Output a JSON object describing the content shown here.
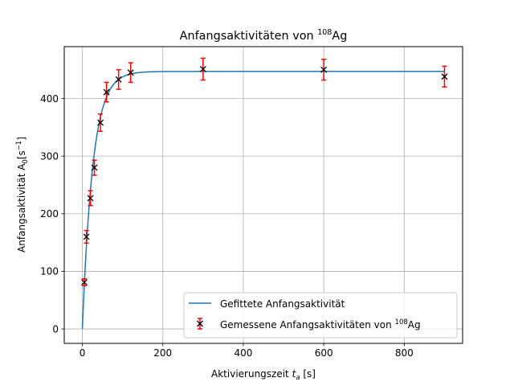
{
  "chart_data": {
    "type": "scatter",
    "title_main": "Anfangsaktivitäten von ",
    "title_sup": "108",
    "title_tail": "Ag",
    "xlabel_main": "Aktivierungszeit ",
    "xlabel_var": "t",
    "xlabel_sub": "a",
    "xlabel_unit": " [s]",
    "ylabel_main": "Anfangsaktivität A",
    "ylabel_sub": "0",
    "ylabel_unit_open": "[s",
    "ylabel_unit_sup": "−1",
    "ylabel_unit_close": "]",
    "xlim": [
      -45,
      945
    ],
    "ylim": [
      -25,
      490
    ],
    "xticks": [
      0,
      200,
      400,
      600,
      800
    ],
    "yticks": [
      0,
      100,
      200,
      300,
      400
    ],
    "grid": true,
    "legend_position": "lower-right",
    "fit": {
      "name": "Gefittete Anfangsaktivität",
      "color": "#1f77b4",
      "A_inf": 447,
      "rate": 0.0385,
      "x_start": 0,
      "x_end": 900
    },
    "measured": {
      "name_main": "Gemessene Anfangsaktivitäten von ",
      "name_sup": "108",
      "name_tail": "Ag",
      "marker_color": "#000000",
      "errorbar_color": "#ff0000",
      "points": [
        {
          "x": 5,
          "y": 81,
          "err": 6
        },
        {
          "x": 10,
          "y": 160,
          "err": 11
        },
        {
          "x": 20,
          "y": 227,
          "err": 13
        },
        {
          "x": 30,
          "y": 280,
          "err": 13
        },
        {
          "x": 45,
          "y": 358,
          "err": 15
        },
        {
          "x": 60,
          "y": 411,
          "err": 17
        },
        {
          "x": 90,
          "y": 433,
          "err": 17
        },
        {
          "x": 120,
          "y": 445,
          "err": 17
        },
        {
          "x": 300,
          "y": 451,
          "err": 19
        },
        {
          "x": 600,
          "y": 450,
          "err": 18
        },
        {
          "x": 900,
          "y": 438,
          "err": 18
        }
      ]
    }
  }
}
